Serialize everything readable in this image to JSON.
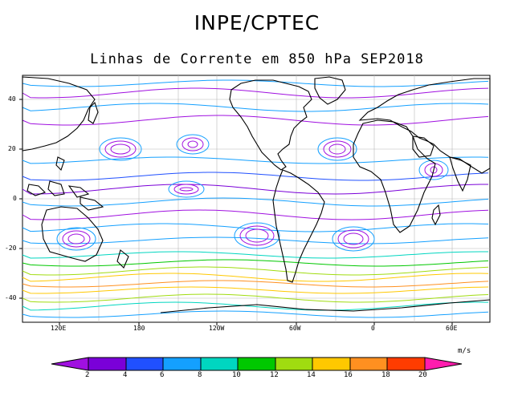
{
  "header": {
    "title": "INPE/CPTEC",
    "subtitle": "Linhas de Corrente em 850 hPa SEP2018"
  },
  "map": {
    "lat_ticks": [
      "40",
      "20",
      "0",
      "-20",
      "-40"
    ],
    "lon_ticks": [
      "120E",
      "180",
      "120W",
      "60W",
      "0",
      "60E"
    ],
    "background": "#ffffff",
    "grid_color": "#b8b8b8",
    "coast_color": "#000000"
  },
  "colorbar": {
    "units": "m/s",
    "labels": [
      "2",
      "4",
      "6",
      "8",
      "10",
      "12",
      "14",
      "16",
      "18",
      "20"
    ],
    "colors": [
      "#a010e0",
      "#7a00d8",
      "#2050ff",
      "#14a0ff",
      "#00d6c0",
      "#00c800",
      "#a0dc10",
      "#ffc800",
      "#ff9020",
      "#ff3c00",
      "#ff1cae"
    ]
  }
}
